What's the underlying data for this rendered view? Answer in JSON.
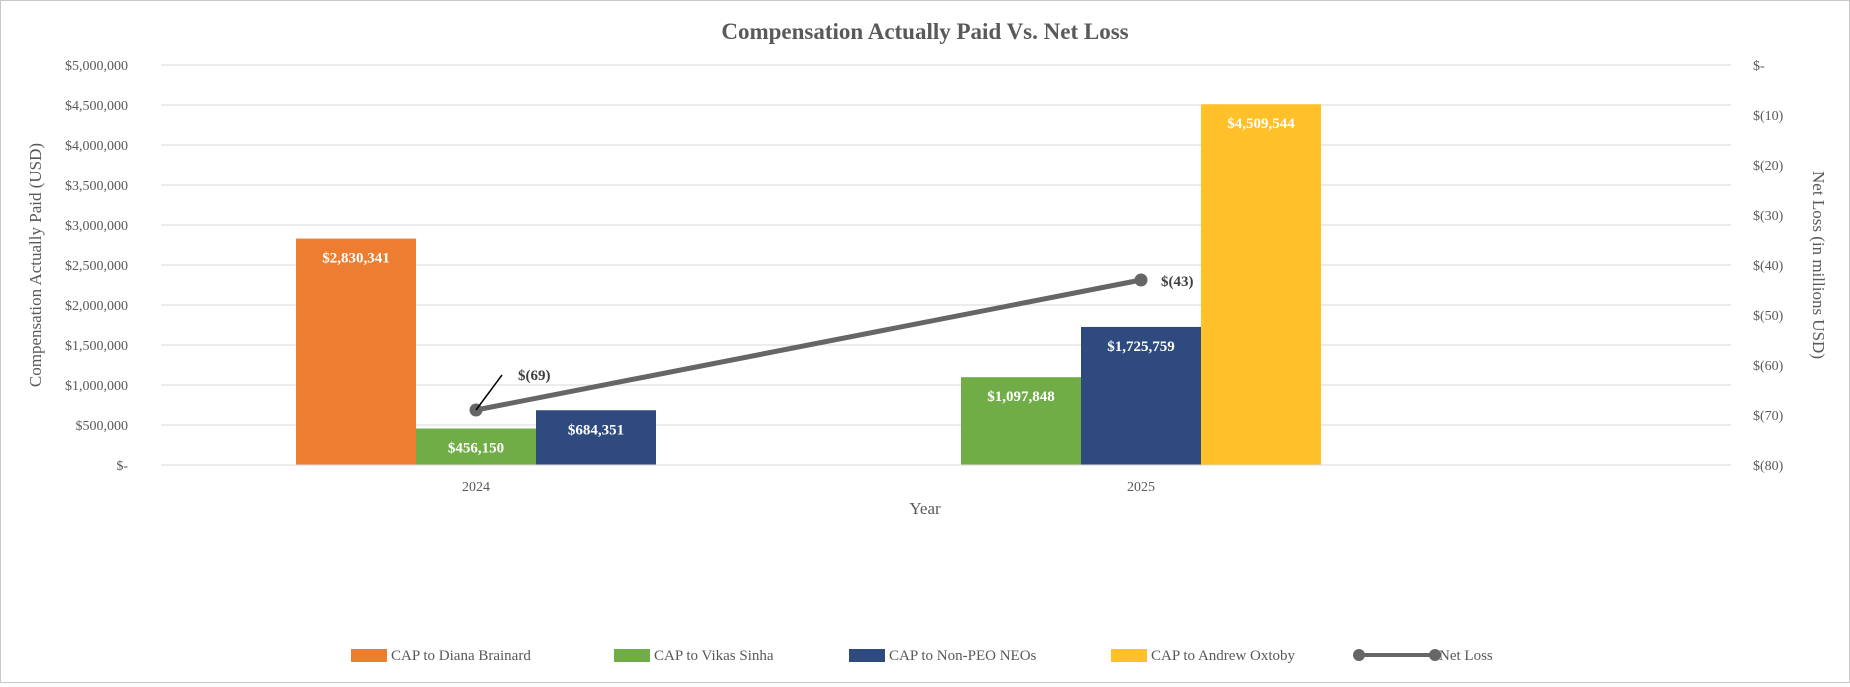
{
  "chart_data": {
    "type": "bar",
    "title": "Compensation Actually Paid Vs. Net Loss",
    "xlabel": "Year",
    "ylabel": "Compensation Actually Paid (USD)",
    "y2label": "Net Loss (in millions USD)",
    "categories": [
      "2024",
      "2025"
    ],
    "ylim": [
      0,
      5000000
    ],
    "y2lim": [
      -80,
      0
    ],
    "yticks": [
      {
        "value": 0,
        "label": "$-"
      },
      {
        "value": 500000,
        "label": "$500,000"
      },
      {
        "value": 1000000,
        "label": "$1,000,000"
      },
      {
        "value": 1500000,
        "label": "$1,500,000"
      },
      {
        "value": 2000000,
        "label": "$2,000,000"
      },
      {
        "value": 2500000,
        "label": "$2,500,000"
      },
      {
        "value": 3000000,
        "label": "$3,000,000"
      },
      {
        "value": 3500000,
        "label": "$3,500,000"
      },
      {
        "value": 4000000,
        "label": "$4,000,000"
      },
      {
        "value": 4500000,
        "label": "$4,500,000"
      },
      {
        "value": 5000000,
        "label": "$5,000,000"
      }
    ],
    "y2ticks": [
      {
        "value": 0,
        "label": "$-"
      },
      {
        "value": -10,
        "label": "$(10)"
      },
      {
        "value": -20,
        "label": "$(20)"
      },
      {
        "value": -30,
        "label": "$(30)"
      },
      {
        "value": -40,
        "label": "$(40)"
      },
      {
        "value": -50,
        "label": "$(50)"
      },
      {
        "value": -60,
        "label": "$(60)"
      },
      {
        "value": -70,
        "label": "$(70)"
      },
      {
        "value": -80,
        "label": "$(80)"
      }
    ],
    "series": [
      {
        "name": "CAP to Diana Brainard",
        "color": "#ED7D31",
        "values": [
          2830341,
          null
        ],
        "labels": [
          "$2,830,341",
          null
        ]
      },
      {
        "name": "CAP to Vikas Sinha",
        "color": "#70AD47",
        "values": [
          456150,
          1097848
        ],
        "labels": [
          "$456,150",
          "$1,097,848"
        ]
      },
      {
        "name": "CAP to Non-PEO NEOs",
        "color": "#2F4A7E",
        "values": [
          684351,
          1725759
        ],
        "labels": [
          "$684,351",
          "$1,725,759"
        ]
      },
      {
        "name": "CAP to Andrew Oxtoby",
        "color": "#FFC02A",
        "values": [
          null,
          4509544
        ],
        "labels": [
          null,
          "$4,509,544"
        ]
      }
    ],
    "line_series": {
      "name": "Net Loss",
      "color": "#666666",
      "axis": "right",
      "values": [
        -69,
        -43
      ],
      "labels": [
        "$(69)",
        "$(43)"
      ]
    },
    "legend_position": "bottom",
    "grid": true
  }
}
